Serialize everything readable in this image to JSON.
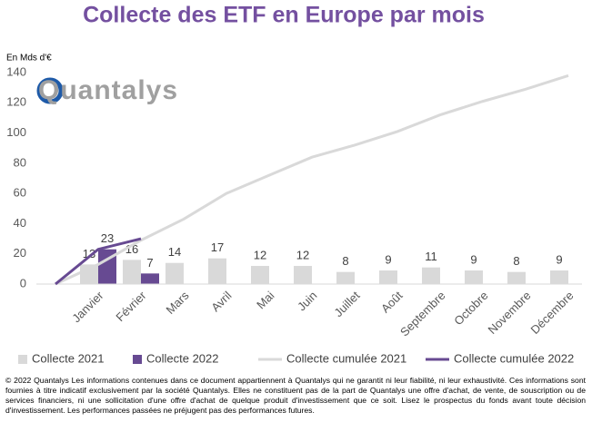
{
  "chart_data": {
    "type": "bar",
    "title": "Collecte des ETF en Europe par mois",
    "y_label": "En Mds d'€",
    "logo": "Quantalys",
    "footer": "© 2022 Quantalys Les informations contenues dans ce document appartiennent à Quantalys qui ne garantit ni leur fiabilité, ni leur exhaustivité. Ces informations sont fournies à titre indicatif exclusivement par la société Quantalys. Elles ne constituent pas de la part de Quantalys une offre d'achat, de vente, de souscription ou de services financiers, ni une sollicitation d'une offre d'achat de quelque produit d'investissement que ce soit. Lisez le prospectus du fonds avant toute décision d'investissement. Les performances passées ne préjugent pas des performances futures.",
    "categories": [
      null,
      "Janvier",
      "Février",
      "Mars",
      "Avril",
      "Mai",
      "Juin",
      "Juillet",
      "Août",
      "Septembre",
      "Octobre",
      "Novembre",
      "Décembre"
    ],
    "series": [
      {
        "name": "Collecte 2021",
        "type": "bar",
        "color": "#d9d9d9",
        "values": [
          null,
          13,
          16,
          14,
          17,
          12,
          12,
          8,
          9,
          11,
          9,
          8,
          9
        ]
      },
      {
        "name": "Collecte 2022",
        "type": "bar",
        "color": "#674a92",
        "values": [
          null,
          23,
          7,
          null,
          null,
          null,
          null,
          null,
          null,
          null,
          null,
          null,
          null
        ]
      },
      {
        "name": "Collecte cumulée 2021",
        "type": "line",
        "color": "#d9d9d9",
        "values": [
          0,
          13,
          29,
          43,
          60,
          72,
          84,
          92,
          101,
          112,
          121,
          129,
          138
        ]
      },
      {
        "name": "Collecte cumulée 2022",
        "type": "line",
        "color": "#674a92",
        "values": [
          0,
          23,
          30,
          null,
          null,
          null,
          null,
          null,
          null,
          null,
          null,
          null,
          null
        ]
      }
    ],
    "ylim": [
      0,
      140
    ],
    "yticks": [
      0,
      20,
      40,
      60,
      80,
      100,
      120,
      140
    ],
    "grid": false,
    "legend": "bottom"
  }
}
